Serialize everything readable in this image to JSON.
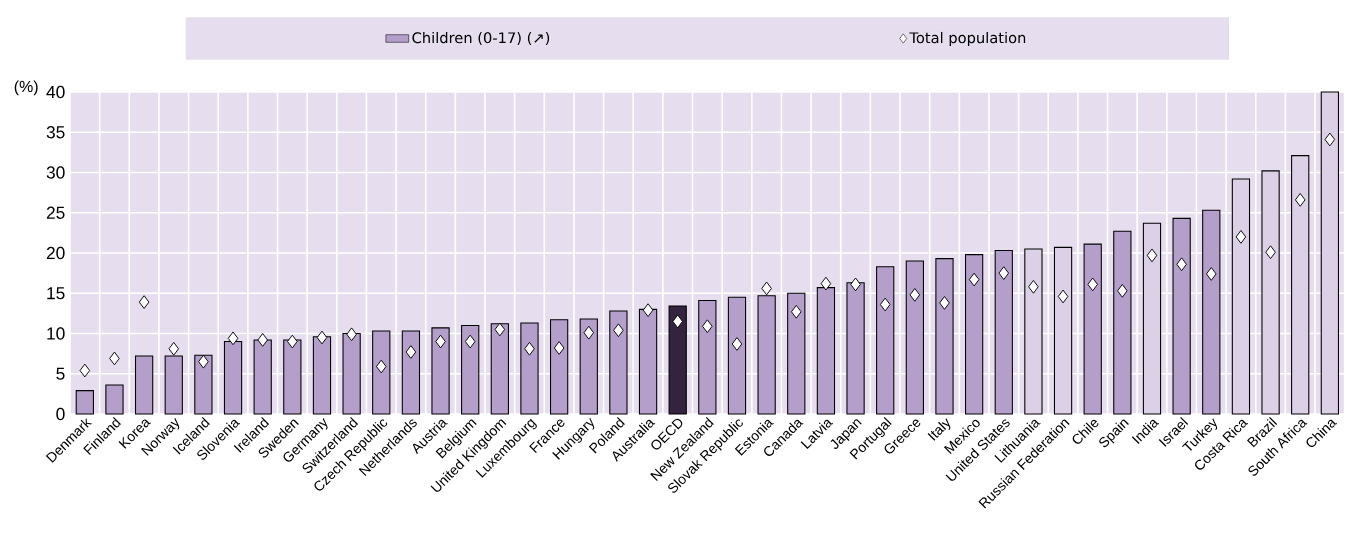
{
  "chart_data": {
    "type": "bar",
    "ylabel": "(%)",
    "categories": [
      "Denmark",
      "Finland",
      "Korea",
      "Norway",
      "Iceland",
      "Slovenia",
      "Ireland",
      "Sweden",
      "Germany",
      "Switzerland",
      "Czech Republic",
      "Netherlands",
      "Austria",
      "Belgium",
      "United Kingdom",
      "Luxembourg",
      "France",
      "Hungary",
      "Poland",
      "Australia",
      "OECD",
      "New Zealand",
      "Slovak Republic",
      "Estonia",
      "Canada",
      "Latvia",
      "Japan",
      "Portugal",
      "Greece",
      "Italy",
      "Mexico",
      "United States",
      "Lithuania",
      "Russian Federation",
      "Chile",
      "Spain",
      "India",
      "Israel",
      "Turkey",
      "Costa Rica",
      "Brazil",
      "South Africa",
      "China"
    ],
    "series": [
      {
        "name": "Children (0-17) (↗)",
        "color": "#b49fcb",
        "values": [
          2.9,
          3.6,
          7.2,
          7.2,
          7.3,
          9.0,
          9.2,
          9.2,
          9.6,
          10.0,
          10.3,
          10.3,
          10.7,
          11.0,
          11.2,
          11.3,
          11.7,
          11.8,
          12.8,
          13.0,
          13.4,
          14.1,
          14.5,
          14.7,
          15.0,
          15.7,
          16.3,
          18.3,
          19.0,
          19.3,
          19.8,
          20.3,
          20.5,
          20.7,
          21.1,
          22.7,
          23.7,
          24.3,
          25.3,
          29.2,
          30.2,
          32.1,
          40.0
        ],
        "colors": [
          "#b49fcb",
          "#b49fcb",
          "#b49fcb",
          "#b49fcb",
          "#b49fcb",
          "#b49fcb",
          "#b49fcb",
          "#b49fcb",
          "#b49fcb",
          "#b49fcb",
          "#b49fcb",
          "#b49fcb",
          "#b49fcb",
          "#b49fcb",
          "#b49fcb",
          "#b49fcb",
          "#b49fcb",
          "#b49fcb",
          "#b49fcb",
          "#b49fcb",
          "#33233f",
          "#b49fcb",
          "#b49fcb",
          "#b49fcb",
          "#b49fcb",
          "#b49fcb",
          "#b49fcb",
          "#b49fcb",
          "#b49fcb",
          "#b49fcb",
          "#b49fcb",
          "#b49fcb",
          "#dcd0e6",
          "#dcd0e6",
          "#b49fcb",
          "#b49fcb",
          "#dcd0e6",
          "#b49fcb",
          "#b49fcb",
          "#dcd0e6",
          "#dcd0e6",
          "#dcd0e6",
          "#dcd0e6"
        ]
      },
      {
        "name": "Total population",
        "type": "scatter",
        "color": "#ffffff",
        "values": [
          5.4,
          6.9,
          13.9,
          8.1,
          6.5,
          9.4,
          9.2,
          9.0,
          9.5,
          9.9,
          5.9,
          7.7,
          9.0,
          9.0,
          10.5,
          8.1,
          8.2,
          10.1,
          10.4,
          12.9,
          11.5,
          10.9,
          8.7,
          15.6,
          12.7,
          16.2,
          16.1,
          13.6,
          14.8,
          13.8,
          16.7,
          17.5,
          15.8,
          14.6,
          16.1,
          15.3,
          19.7,
          18.6,
          17.4,
          22.0,
          20.1,
          26.6,
          34.1
        ]
      }
    ],
    "marker": "diamond",
    "ylim": [
      0,
      40
    ],
    "yticks": [
      0,
      5,
      10,
      15,
      20,
      25,
      30,
      35,
      40
    ],
    "grid": true,
    "legend": "top"
  }
}
